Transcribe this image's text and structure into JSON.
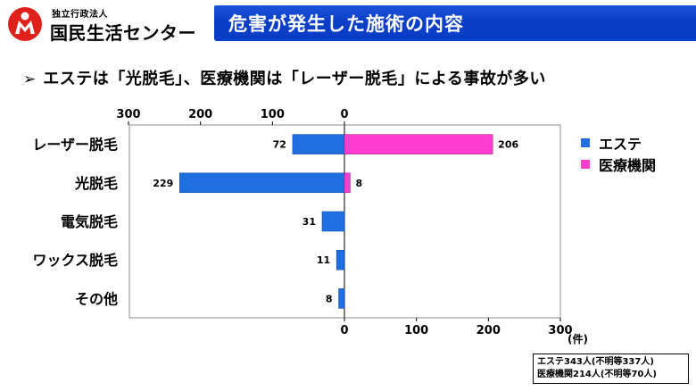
{
  "header": {
    "org_sub": "独立行政法人",
    "org_name": "国民生活センター",
    "logo_icon": "person-mark-icon",
    "logo_color": "#e0201b"
  },
  "title": "危害が発生した施術の内容",
  "subtitle_marker": "➢",
  "subtitle": "エステは「光脱毛」、医療機関は「レーザー脱毛」による事故が多い",
  "colors": {
    "title_bar": "#0a3ec7",
    "series_este": "#1f6fe0",
    "series_medical": "#ff3dcf"
  },
  "chart_data": {
    "type": "bar",
    "orientation": "horizontal",
    "layout": "back-to-back",
    "categories": [
      "レーザー脱毛",
      "光脱毛",
      "電気脱毛",
      "ワックス脱毛",
      "その他"
    ],
    "series": [
      {
        "name": "エステ",
        "values": [
          72,
          229,
          31,
          11,
          8
        ],
        "direction": "left",
        "color": "#1f6fe0"
      },
      {
        "name": "医療機関",
        "values": [
          206,
          8,
          null,
          null,
          null
        ],
        "direction": "right",
        "color": "#ff3dcf"
      }
    ],
    "top_axis": {
      "ticks": [
        300,
        200,
        100,
        0
      ],
      "range": [
        300,
        0
      ]
    },
    "bottom_axis": {
      "ticks": [
        0,
        100,
        200,
        300
      ],
      "range": [
        0,
        300
      ]
    },
    "unit_label": "(件)",
    "legend_position": "right",
    "grid": false,
    "data_labels": true
  },
  "notes": [
    "エステ343人(不明等337人)",
    "医療機関214人(不明等70人)"
  ]
}
